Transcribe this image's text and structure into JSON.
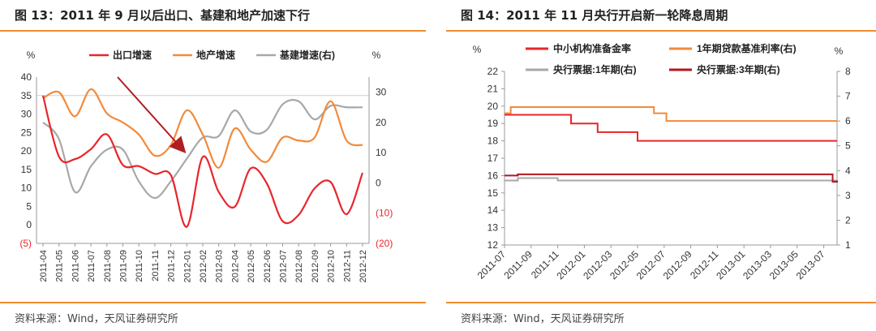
{
  "left": {
    "title": "图 13：2011 年 9 月以后出口、基建和地产加速下行",
    "source": "资料来源：Wind，天风证券研究所"
  },
  "right": {
    "title": "图 14：2011 年 11 月央行开启新一轮降息周期",
    "source": "资料来源：Wind，天风证券研究所"
  },
  "colors": {
    "red": "#e8262c",
    "orange": "#f28a3a",
    "gray": "#a8a8a8",
    "darkred": "#b3171e",
    "arrow": "#b01e22",
    "rule": "#f08c2e"
  },
  "chart_data": [
    {
      "type": "line",
      "x": [
        "2011-04",
        "2011-05",
        "2011-06",
        "2011-07",
        "2011-08",
        "2011-09",
        "2011-10",
        "2011-11",
        "2011-12",
        "2012-01",
        "2012-02",
        "2012-03",
        "2012-04",
        "2012-05",
        "2012-06",
        "2012-07",
        "2012-08",
        "2012-09",
        "2012-10",
        "2012-11",
        "2012-12"
      ],
      "y_left_unit": "%",
      "y_right_unit": "%",
      "y_left_ticks": [
        "0",
        "5",
        "10",
        "15",
        "20",
        "25",
        "30",
        "35",
        "40"
      ],
      "y_left_neg_label": "(5)",
      "y_right_ticks": [
        "(20)",
        "(10)",
        "0",
        "10",
        "20",
        "30"
      ],
      "ylim_left": [
        -5,
        40
      ],
      "ylim_right": [
        -20,
        35
      ],
      "grid": false,
      "legend_position": "top",
      "annotation": "arrow pointing down from 2011-09 toward 2012-01",
      "series": [
        {
          "name": "出口增速",
          "axis": "left",
          "color": "red",
          "values": [
            35.0,
            18.5,
            17.8,
            20.5,
            24.5,
            16.2,
            15.9,
            13.8,
            13.5,
            -0.5,
            18.4,
            8.9,
            4.9,
            15.3,
            11.3,
            1.0,
            2.7,
            9.9,
            11.6,
            2.9,
            14.1
          ]
        },
        {
          "name": "地产增速",
          "axis": "right",
          "color": "orange",
          "values": [
            28.0,
            30.0,
            22.0,
            31.0,
            23.0,
            20.0,
            16.0,
            9.0,
            12.5,
            24.0,
            16.0,
            5.0,
            18.0,
            11.0,
            7.0,
            15.0,
            14.0,
            15.0,
            27.0,
            14.0,
            12.5
          ]
        },
        {
          "name": "基建增速(右)",
          "axis": "right",
          "color": "gray",
          "values": [
            20.0,
            14.5,
            -3.0,
            5.5,
            11.0,
            11.0,
            0.5,
            -5.0,
            0.5,
            8.0,
            15.0,
            15.5,
            24.0,
            17.0,
            17.5,
            26.0,
            27.0,
            21.0,
            25.5,
            25.0,
            25.0
          ]
        }
      ]
    },
    {
      "type": "line",
      "x_ticks": [
        "2011-07",
        "2011-09",
        "2011-11",
        "2012-01",
        "2012-03",
        "2012-05",
        "2012-07",
        "2012-09",
        "2012-11",
        "2013-01",
        "2013-03",
        "2013-05",
        "2013-07"
      ],
      "y_left_unit": "%",
      "y_right_unit": "%",
      "y_left_ticks": [
        "12",
        "13",
        "14",
        "15",
        "16",
        "17",
        "18",
        "19",
        "20",
        "21",
        "22"
      ],
      "y_right_ticks": [
        "1",
        "2",
        "3",
        "4",
        "5",
        "6",
        "7",
        "8"
      ],
      "ylim_left": [
        12,
        22
      ],
      "ylim_right": [
        1,
        8
      ],
      "grid": false,
      "legend_position": "top",
      "series": [
        {
          "name": "中小机构准备金率",
          "axis": "left",
          "color": "red",
          "steps": [
            [
              "2011-07",
              19.5
            ],
            [
              "2011-12",
              19.0
            ],
            [
              "2012-02",
              18.5
            ],
            [
              "2012-05",
              18.0
            ],
            [
              "2013-08",
              18.0
            ]
          ]
        },
        {
          "name": "1年期贷款基准利率(右)",
          "axis": "right",
          "color": "orange",
          "steps": [
            [
              "2011-07",
              6.31
            ],
            [
              "2011-07-15",
              6.56
            ],
            [
              "2012-06-08",
              6.31
            ],
            [
              "2012-07-06",
              6.0
            ],
            [
              "2013-08",
              6.0
            ]
          ]
        },
        {
          "name": "央行票据:1年期(右)",
          "axis": "right",
          "color": "gray",
          "steps": [
            [
              "2011-07",
              3.6
            ],
            [
              "2011-08",
              3.7
            ],
            [
              "2011-11",
              3.6
            ],
            [
              "2013-08",
              3.6
            ]
          ]
        },
        {
          "name": "央行票据:3年期(右)",
          "axis": "right",
          "color": "darkred",
          "steps": [
            [
              "2011-07",
              3.8
            ],
            [
              "2011-08",
              3.85
            ],
            [
              "2013-07-20",
              3.85
            ],
            [
              "2013-07-21",
              3.55
            ],
            [
              "2013-08",
              3.6
            ]
          ]
        }
      ]
    }
  ]
}
